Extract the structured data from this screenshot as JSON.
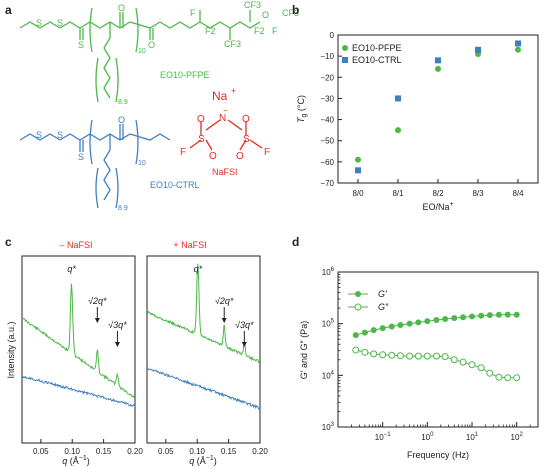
{
  "colors": {
    "green": "#4cb848",
    "blue": "#3f7fbf",
    "red": "#e32b22",
    "black": "#222222"
  },
  "panels": {
    "a": "a",
    "b": "b",
    "c": "c",
    "d": "d"
  },
  "structures": {
    "top_label": "EO10-PFPE",
    "bottom_label": "EO10-CTRL",
    "salt_label": "NaFSI",
    "na": "Na",
    "na_charge": "+",
    "n_sub": "10",
    "m_sub": "8.9",
    "F": "F",
    "CF3": "CF3",
    "F2": "F2",
    "O": "O",
    "S": "S",
    "N": "N",
    "minus": "−"
  },
  "chart_data": [
    {
      "panel": "b",
      "type": "scatter",
      "categories": [
        "8/0",
        "8/1",
        "8/2",
        "8/3",
        "8/4"
      ],
      "series": [
        {
          "name": "EO10-PFPE",
          "marker": "circle",
          "color": "#4cb848",
          "values": [
            -59,
            -45,
            -16,
            -9,
            -7
          ]
        },
        {
          "name": "EO10-CTRL",
          "marker": "square",
          "color": "#3f7fbf",
          "values": [
            -64,
            -30,
            -12,
            -7,
            -4
          ]
        }
      ],
      "ylim": [
        -70,
        0
      ],
      "yticks": [
        "0",
        "−10",
        "−20",
        "−30",
        "−40",
        "−50",
        "−60",
        "−70"
      ],
      "ylabel_main": "T",
      "ylabel_sub": "g",
      "ylabel_unit": " (°C)",
      "xlabel_main": "EO/Na",
      "xlabel_sup": "+",
      "legend_position": "top-left"
    },
    {
      "panel": "c",
      "type": "line",
      "subpanels": [
        {
          "title": "– NaFSI",
          "title_color": "#e32b22",
          "peaks_green": [
            {
              "q": 0.099,
              "label": "q*"
            },
            {
              "q": 0.14,
              "label": "√2q*"
            },
            {
              "q": 0.172,
              "label": "√3q*"
            }
          ],
          "peaks_blue": []
        },
        {
          "title": "+ NaFSI",
          "title_color": "#e32b22",
          "peaks_green": [
            {
              "q": 0.101,
              "label": "q*"
            },
            {
              "q": 0.143,
              "label": "√2q*"
            },
            {
              "q": 0.175,
              "label": "√3q*"
            }
          ],
          "peaks_blue": []
        }
      ],
      "xlim": [
        0.02,
        0.2
      ],
      "xticks": [
        "0.05",
        "0.10",
        "0.15",
        "0.20"
      ],
      "ylabel": "Intensity (a.u.)",
      "xlabel_main": "q",
      "xlabel_unit": "(Å",
      "xlabel_exp": "−1",
      "xlabel_close": ")"
    },
    {
      "panel": "d",
      "type": "line",
      "scale": "log-log",
      "x": [
        0.025,
        0.04,
        0.063,
        0.1,
        0.16,
        0.25,
        0.4,
        0.63,
        1,
        1.6,
        2.5,
        4,
        6.3,
        10,
        16,
        25,
        40,
        63,
        100
      ],
      "series": [
        {
          "name": "G′",
          "marker": "filled-circle",
          "color": "#4cb848",
          "values": [
            60000,
            67000,
            75000,
            82000,
            88000,
            94000,
            100000,
            106000,
            112000,
            118000,
            123000,
            128000,
            133000,
            138000,
            142000,
            146000,
            149000,
            150000,
            149000
          ]
        },
        {
          "name": "G″",
          "marker": "open-circle",
          "color": "#4cb848",
          "values": [
            31000,
            28000,
            26000,
            25000,
            24500,
            24000,
            23500,
            23500,
            23500,
            23500,
            23000,
            20000,
            18000,
            16000,
            14000,
            11000,
            9200,
            9000,
            9000
          ]
        }
      ],
      "xlim": [
        0.01,
        300
      ],
      "ylim": [
        1000,
        1000000
      ],
      "xticks": [
        {
          "v": 0.1,
          "base": "10",
          "exp": "−1"
        },
        {
          "v": 1,
          "base": "10",
          "exp": "0"
        },
        {
          "v": 10,
          "base": "10",
          "exp": "1"
        },
        {
          "v": 100,
          "base": "10",
          "exp": "2"
        }
      ],
      "yticks": [
        {
          "v": 1000,
          "base": "10",
          "exp": "3"
        },
        {
          "v": 10000,
          "base": "10",
          "exp": "4"
        },
        {
          "v": 100000,
          "base": "10",
          "exp": "5"
        },
        {
          "v": 1000000,
          "base": "10",
          "exp": "6"
        }
      ],
      "xlabel": "Frequency (Hz)",
      "ylabel_a": "G′ and G″ (Pa)",
      "legend_position": "top-left"
    }
  ]
}
